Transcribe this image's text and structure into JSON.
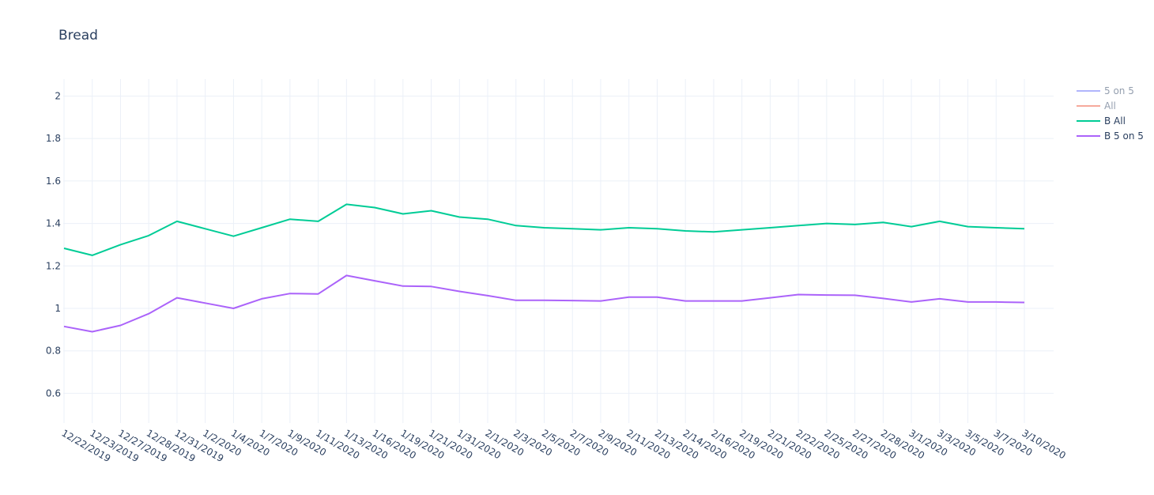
{
  "chart_data": {
    "type": "line",
    "title": "Bread",
    "categories": [
      "12/22/2019",
      "12/23/2019",
      "12/27/2019",
      "12/28/2019",
      "12/31/2019",
      "1/2/2020",
      "1/4/2020",
      "1/7/2020",
      "1/9/2020",
      "1/11/2020",
      "1/13/2020",
      "1/16/2020",
      "1/19/2020",
      "1/21/2020",
      "1/31/2020",
      "2/1/2020",
      "2/3/2020",
      "2/5/2020",
      "2/7/2020",
      "2/9/2020",
      "2/11/2020",
      "2/13/2020",
      "2/14/2020",
      "2/16/2020",
      "2/19/2020",
      "2/21/2020",
      "2/22/2020",
      "2/25/2020",
      "2/27/2020",
      "2/28/2020",
      "3/1/2020",
      "3/3/2020",
      "3/5/2020",
      "3/7/2020",
      "3/10/2020"
    ],
    "series": [
      {
        "name": "5 on 5",
        "color": "#636efa",
        "visible": "legendonly"
      },
      {
        "name": "All",
        "color": "#EF553B",
        "visible": "legendonly"
      },
      {
        "name": "B All",
        "color": "#00cc96",
        "values": [
          1.283,
          1.25,
          1.3,
          1.343,
          1.41,
          1.375,
          1.34,
          1.38,
          1.42,
          1.41,
          1.49,
          1.475,
          1.445,
          1.46,
          1.43,
          1.42,
          1.39,
          1.38,
          1.375,
          1.37,
          1.38,
          1.375,
          1.365,
          1.36,
          1.37,
          1.38,
          1.39,
          1.4,
          1.395,
          1.405,
          1.385,
          1.41,
          1.385,
          1.38,
          1.375
        ]
      },
      {
        "name": "B 5 on 5",
        "color": "#ab63fa",
        "values": [
          0.915,
          0.89,
          0.92,
          0.975,
          1.05,
          1.025,
          1.0,
          1.045,
          1.07,
          1.068,
          1.155,
          1.13,
          1.105,
          1.103,
          1.08,
          1.06,
          1.038,
          1.038,
          1.037,
          1.035,
          1.053,
          1.053,
          1.035,
          1.035,
          1.035,
          1.05,
          1.065,
          1.063,
          1.062,
          1.047,
          1.03,
          1.045,
          1.03,
          1.03,
          1.028
        ]
      }
    ],
    "ylim": [
      0.46,
      2.08
    ],
    "yticks": [
      0.6,
      0.8,
      1,
      1.2,
      1.4,
      1.6,
      1.8,
      2
    ],
    "grid": true
  }
}
